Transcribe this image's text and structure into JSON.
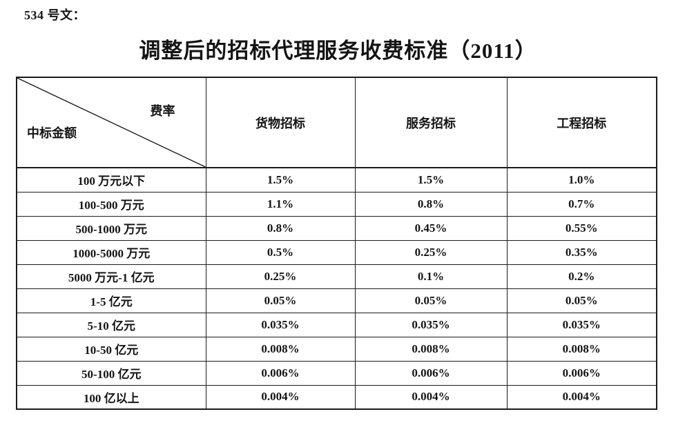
{
  "page": {
    "doc_label": "534 号文：",
    "title": "调整后的招标代理服务收费标准（2011）"
  },
  "table": {
    "corner_top_right": "费率",
    "corner_bottom_left": "中标金额",
    "columns": [
      "货物招标",
      "服务招标",
      "工程招标"
    ],
    "rows": [
      {
        "amount": "100 万元以下",
        "values": [
          "1.5%",
          "1.5%",
          "1.0%"
        ]
      },
      {
        "amount": "100-500 万元",
        "values": [
          "1.1%",
          "0.8%",
          "0.7%"
        ]
      },
      {
        "amount": "500-1000 万元",
        "values": [
          "0.8%",
          "0.45%",
          "0.55%"
        ]
      },
      {
        "amount": "1000-5000 万元",
        "values": [
          "0.5%",
          "0.25%",
          "0.35%"
        ]
      },
      {
        "amount": "5000 万元-1 亿元",
        "values": [
          "0.25%",
          "0.1%",
          "0.2%"
        ]
      },
      {
        "amount": "1-5 亿元",
        "values": [
          "0.05%",
          "0.05%",
          "0.05%"
        ]
      },
      {
        "amount": "5-10 亿元",
        "values": [
          "0.035%",
          "0.035%",
          "0.035%"
        ]
      },
      {
        "amount": "10-50 亿元",
        "values": [
          "0.008%",
          "0.008%",
          "0.008%"
        ]
      },
      {
        "amount": "50-100 亿元",
        "values": [
          "0.006%",
          "0.006%",
          "0.006%"
        ]
      },
      {
        "amount": "100 亿以上",
        "values": [
          "0.004%",
          "0.004%",
          "0.004%"
        ]
      }
    ]
  }
}
